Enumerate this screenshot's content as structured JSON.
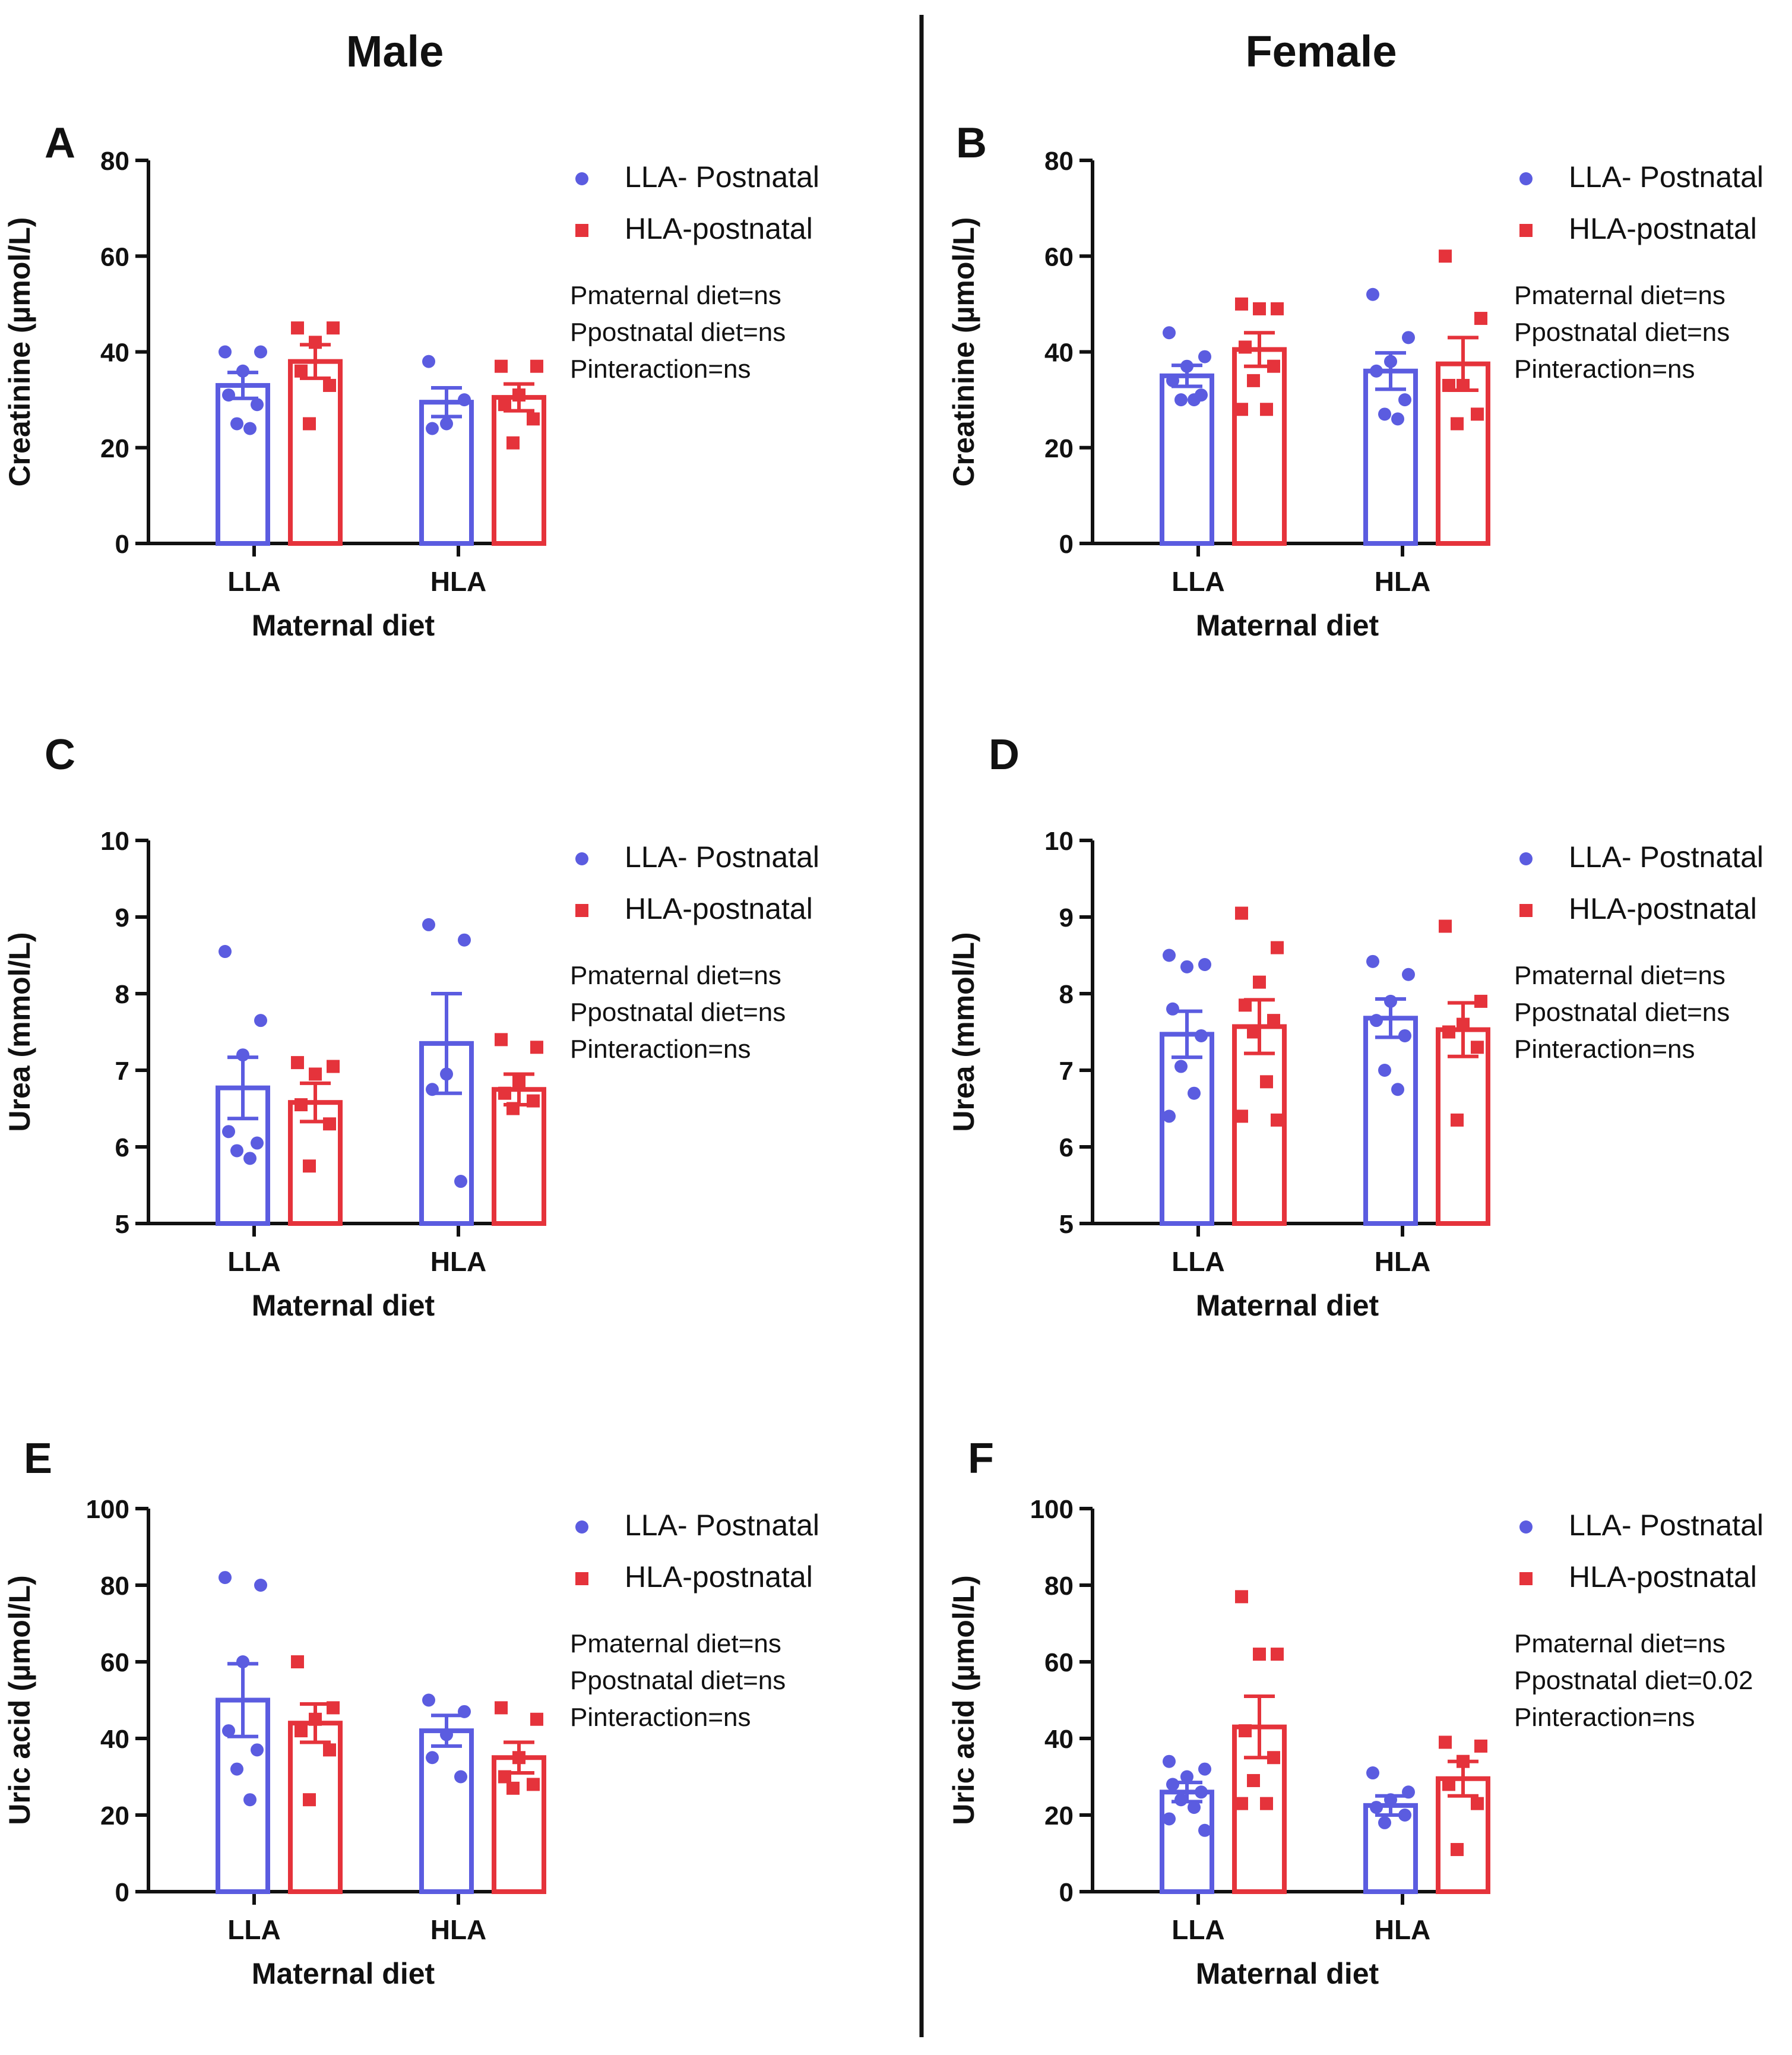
{
  "headers": {
    "male": "Male",
    "female": "Female"
  },
  "colors": {
    "llaPostnatal": "#5b5ce0",
    "hlaPostnatal": "#e5333b",
    "axis": "#111111"
  },
  "panelLetters": [
    "A",
    "B",
    "C",
    "D",
    "E",
    "F"
  ],
  "chart_data": [
    {
      "panel": "A",
      "type": "bar",
      "sex": "Male",
      "xlabel": "Maternal diet",
      "ylabel": "Creatinine (µmol/L)",
      "ylim": [
        0,
        80
      ],
      "yticks": [
        0,
        20,
        40,
        60,
        80
      ],
      "categories": [
        "LLA",
        "HLA"
      ],
      "legend": [
        "LLA- Postnatal",
        "HLA-postnatal"
      ],
      "stats": [
        "Pmaternal diet=ns",
        "Ppostnatal diet=ns",
        "Pinteraction=ns"
      ],
      "series": [
        {
          "name": "LLA- Postnatal",
          "values": [
            33,
            29.5
          ],
          "sem": [
            2.7,
            3
          ],
          "points": [
            [
              40,
              40,
              36,
              31,
              29,
              25,
              24
            ],
            [
              38,
              30,
              25,
              24
            ]
          ]
        },
        {
          "name": "HLA-postnatal",
          "values": [
            38,
            30.5
          ],
          "sem": [
            3.5,
            2.8
          ],
          "points": [
            [
              45,
              45,
              42,
              36,
              33,
              25
            ],
            [
              37,
              37,
              31,
              29,
              26,
              21
            ]
          ]
        }
      ]
    },
    {
      "panel": "B",
      "type": "bar",
      "sex": "Female",
      "xlabel": "Maternal diet",
      "ylabel": "Creatinine (µmol/L)",
      "ylim": [
        0,
        80
      ],
      "yticks": [
        0,
        20,
        40,
        60,
        80
      ],
      "categories": [
        "LLA",
        "HLA"
      ],
      "legend": [
        "LLA- Postnatal",
        "HLA-postnatal"
      ],
      "stats": [
        "Pmaternal diet=ns",
        "Ppostnatal diet=ns",
        "Pinteraction=ns"
      ],
      "series": [
        {
          "name": "LLA- Postnatal",
          "values": [
            35,
            36
          ],
          "sem": [
            2.2,
            3.8
          ],
          "points": [
            [
              44,
              39,
              37,
              34,
              31,
              30,
              30
            ],
            [
              52,
              43,
              38,
              36,
              30,
              27,
              26
            ]
          ]
        },
        {
          "name": "HLA-postnatal",
          "values": [
            40.5,
            37.5
          ],
          "sem": [
            3.5,
            5.5
          ],
          "points": [
            [
              50,
              49,
              49,
              41,
              37,
              34,
              28,
              28
            ],
            [
              60,
              47,
              33,
              33,
              27,
              25
            ]
          ]
        }
      ]
    },
    {
      "panel": "C",
      "type": "bar",
      "sex": "Male",
      "xlabel": "Maternal diet",
      "ylabel": "Urea (mmol/L)",
      "ylim": [
        5,
        10
      ],
      "yticks": [
        5,
        6,
        7,
        8,
        9,
        10
      ],
      "categories": [
        "LLA",
        "HLA"
      ],
      "legend": [
        "LLA- Postnatal",
        "HLA-postnatal"
      ],
      "stats": [
        "Pmaternal diet=ns",
        "Ppostnatal diet=ns",
        "Pinteraction=ns"
      ],
      "series": [
        {
          "name": "LLA- Postnatal",
          "values": [
            6.77,
            7.35
          ],
          "sem": [
            0.4,
            0.65
          ],
          "points": [
            [
              8.55,
              7.65,
              7.2,
              6.2,
              6.05,
              5.95,
              5.85
            ],
            [
              8.9,
              8.7,
              6.95,
              6.75,
              5.55
            ]
          ]
        },
        {
          "name": "HLA-postnatal",
          "values": [
            6.58,
            6.75
          ],
          "sem": [
            0.25,
            0.2
          ],
          "points": [
            [
              7.1,
              7.05,
              6.95,
              6.55,
              6.3,
              5.75
            ],
            [
              7.4,
              7.3,
              6.85,
              6.7,
              6.6,
              6.5
            ]
          ]
        }
      ]
    },
    {
      "panel": "D",
      "type": "bar",
      "sex": "Female",
      "xlabel": "Maternal diet",
      "ylabel": "Urea (mmol/L)",
      "ylim": [
        5,
        10
      ],
      "yticks": [
        5,
        6,
        7,
        8,
        9,
        10
      ],
      "categories": [
        "LLA",
        "HLA"
      ],
      "legend": [
        "LLA- Postnatal",
        "HLA-postnatal"
      ],
      "stats": [
        "Pmaternal diet=ns",
        "Ppostnatal diet=ns",
        "Pinteraction=ns"
      ],
      "series": [
        {
          "name": "LLA- Postnatal",
          "values": [
            7.47,
            7.68
          ],
          "sem": [
            0.3,
            0.25
          ],
          "points": [
            [
              8.5,
              8.38,
              8.35,
              7.8,
              7.45,
              7.05,
              6.7,
              6.4
            ],
            [
              8.42,
              8.25,
              7.9,
              7.65,
              7.45,
              7.0,
              6.75
            ]
          ]
        },
        {
          "name": "HLA-postnatal",
          "values": [
            7.57,
            7.53
          ],
          "sem": [
            0.35,
            0.35
          ],
          "points": [
            [
              9.05,
              8.6,
              8.15,
              7.85,
              7.65,
              7.5,
              6.85,
              6.4,
              6.35
            ],
            [
              8.88,
              7.9,
              7.6,
              7.5,
              7.3,
              6.35
            ]
          ]
        }
      ]
    },
    {
      "panel": "E",
      "type": "bar",
      "sex": "Male",
      "xlabel": "Maternal diet",
      "ylabel": "Uric acid (µmol/L)",
      "ylim": [
        0,
        100
      ],
      "yticks": [
        0,
        20,
        40,
        60,
        80,
        100
      ],
      "categories": [
        "LLA",
        "HLA"
      ],
      "legend": [
        "LLA- Postnatal",
        "HLA-postnatal"
      ],
      "stats": [
        "Pmaternal diet=ns",
        "Ppostnatal diet=ns",
        "Pinteraction=ns"
      ],
      "series": [
        {
          "name": "LLA- Postnatal",
          "values": [
            50,
            42
          ],
          "sem": [
            9.5,
            4
          ],
          "points": [
            [
              82,
              80,
              60,
              42,
              37,
              32,
              24
            ],
            [
              50,
              47,
              41,
              35,
              30
            ]
          ]
        },
        {
          "name": "HLA-postnatal",
          "values": [
            44,
            35
          ],
          "sem": [
            5,
            4
          ],
          "points": [
            [
              60,
              48,
              45,
              42,
              37,
              24
            ],
            [
              48,
              45,
              35,
              30,
              28,
              27
            ]
          ]
        }
      ]
    },
    {
      "panel": "F",
      "type": "bar",
      "sex": "Female",
      "xlabel": "Maternal diet",
      "ylabel": "Uric acid (µmol/L)",
      "ylim": [
        0,
        100
      ],
      "yticks": [
        0,
        20,
        40,
        60,
        80,
        100
      ],
      "categories": [
        "LLA",
        "HLA"
      ],
      "legend": [
        "LLA- Postnatal",
        "HLA-postnatal"
      ],
      "stats": [
        "Pmaternal diet=ns",
        "Ppostnatal diet=0.02",
        "Pinteraction=ns"
      ],
      "series": [
        {
          "name": "LLA- Postnatal",
          "values": [
            26,
            22.5
          ],
          "sem": [
            2.5,
            2.5
          ],
          "points": [
            [
              34,
              32,
              30,
              28,
              26,
              24,
              22,
              19,
              16
            ],
            [
              31,
              26,
              24,
              22,
              20,
              18
            ]
          ]
        },
        {
          "name": "HLA-postnatal",
          "values": [
            43,
            29.5
          ],
          "sem": [
            8,
            4.5
          ],
          "points": [
            [
              77,
              62,
              62,
              42,
              35,
              29,
              23,
              23
            ],
            [
              39,
              38,
              34,
              28,
              23,
              11
            ]
          ]
        }
      ]
    }
  ]
}
